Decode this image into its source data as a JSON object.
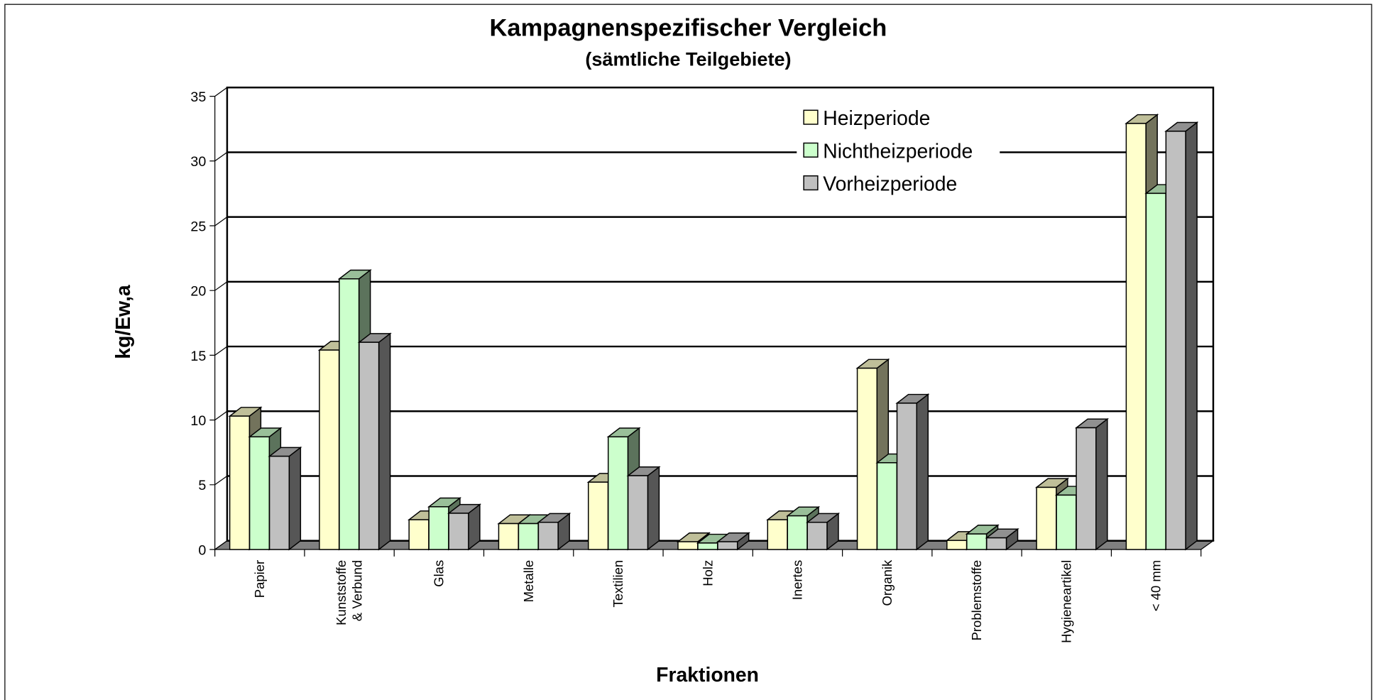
{
  "chart_data": {
    "type": "bar3d",
    "title": "Kampagnenspezifischer Vergleich",
    "subtitle": "(sämtliche Teilgebiete)",
    "x_label": "Fraktionen",
    "y_label": "kg/Ew,a",
    "categories": [
      "Papier",
      "Kunststoffe\n& Verbund",
      "Glas",
      "Metalle",
      "Textilien",
      "Holz",
      "Inertes",
      "Organik",
      "Problemstoffe",
      "Hygieneartikel",
      "< 40 mm"
    ],
    "series": [
      {
        "name": "Heizperiode",
        "color": "#ffffcc",
        "values": [
          10.3,
          15.4,
          2.3,
          2.0,
          5.2,
          0.6,
          2.3,
          14.0,
          0.7,
          4.8,
          32.9
        ]
      },
      {
        "name": "Nichtheizperiode",
        "color": "#ccffcc",
        "values": [
          8.7,
          20.9,
          3.3,
          2.0,
          8.7,
          0.5,
          2.6,
          6.7,
          1.2,
          4.2,
          27.5
        ]
      },
      {
        "name": "Vorheizperiode",
        "color": "#c0c0c0",
        "values": [
          7.2,
          16.0,
          2.8,
          2.1,
          5.7,
          0.6,
          2.1,
          11.3,
          0.9,
          9.4,
          32.3
        ]
      }
    ],
    "ylim": [
      0,
      35
    ],
    "yticks": [
      0,
      5,
      10,
      15,
      20,
      25,
      30,
      35
    ],
    "grid": true,
    "legend": "top-right"
  }
}
